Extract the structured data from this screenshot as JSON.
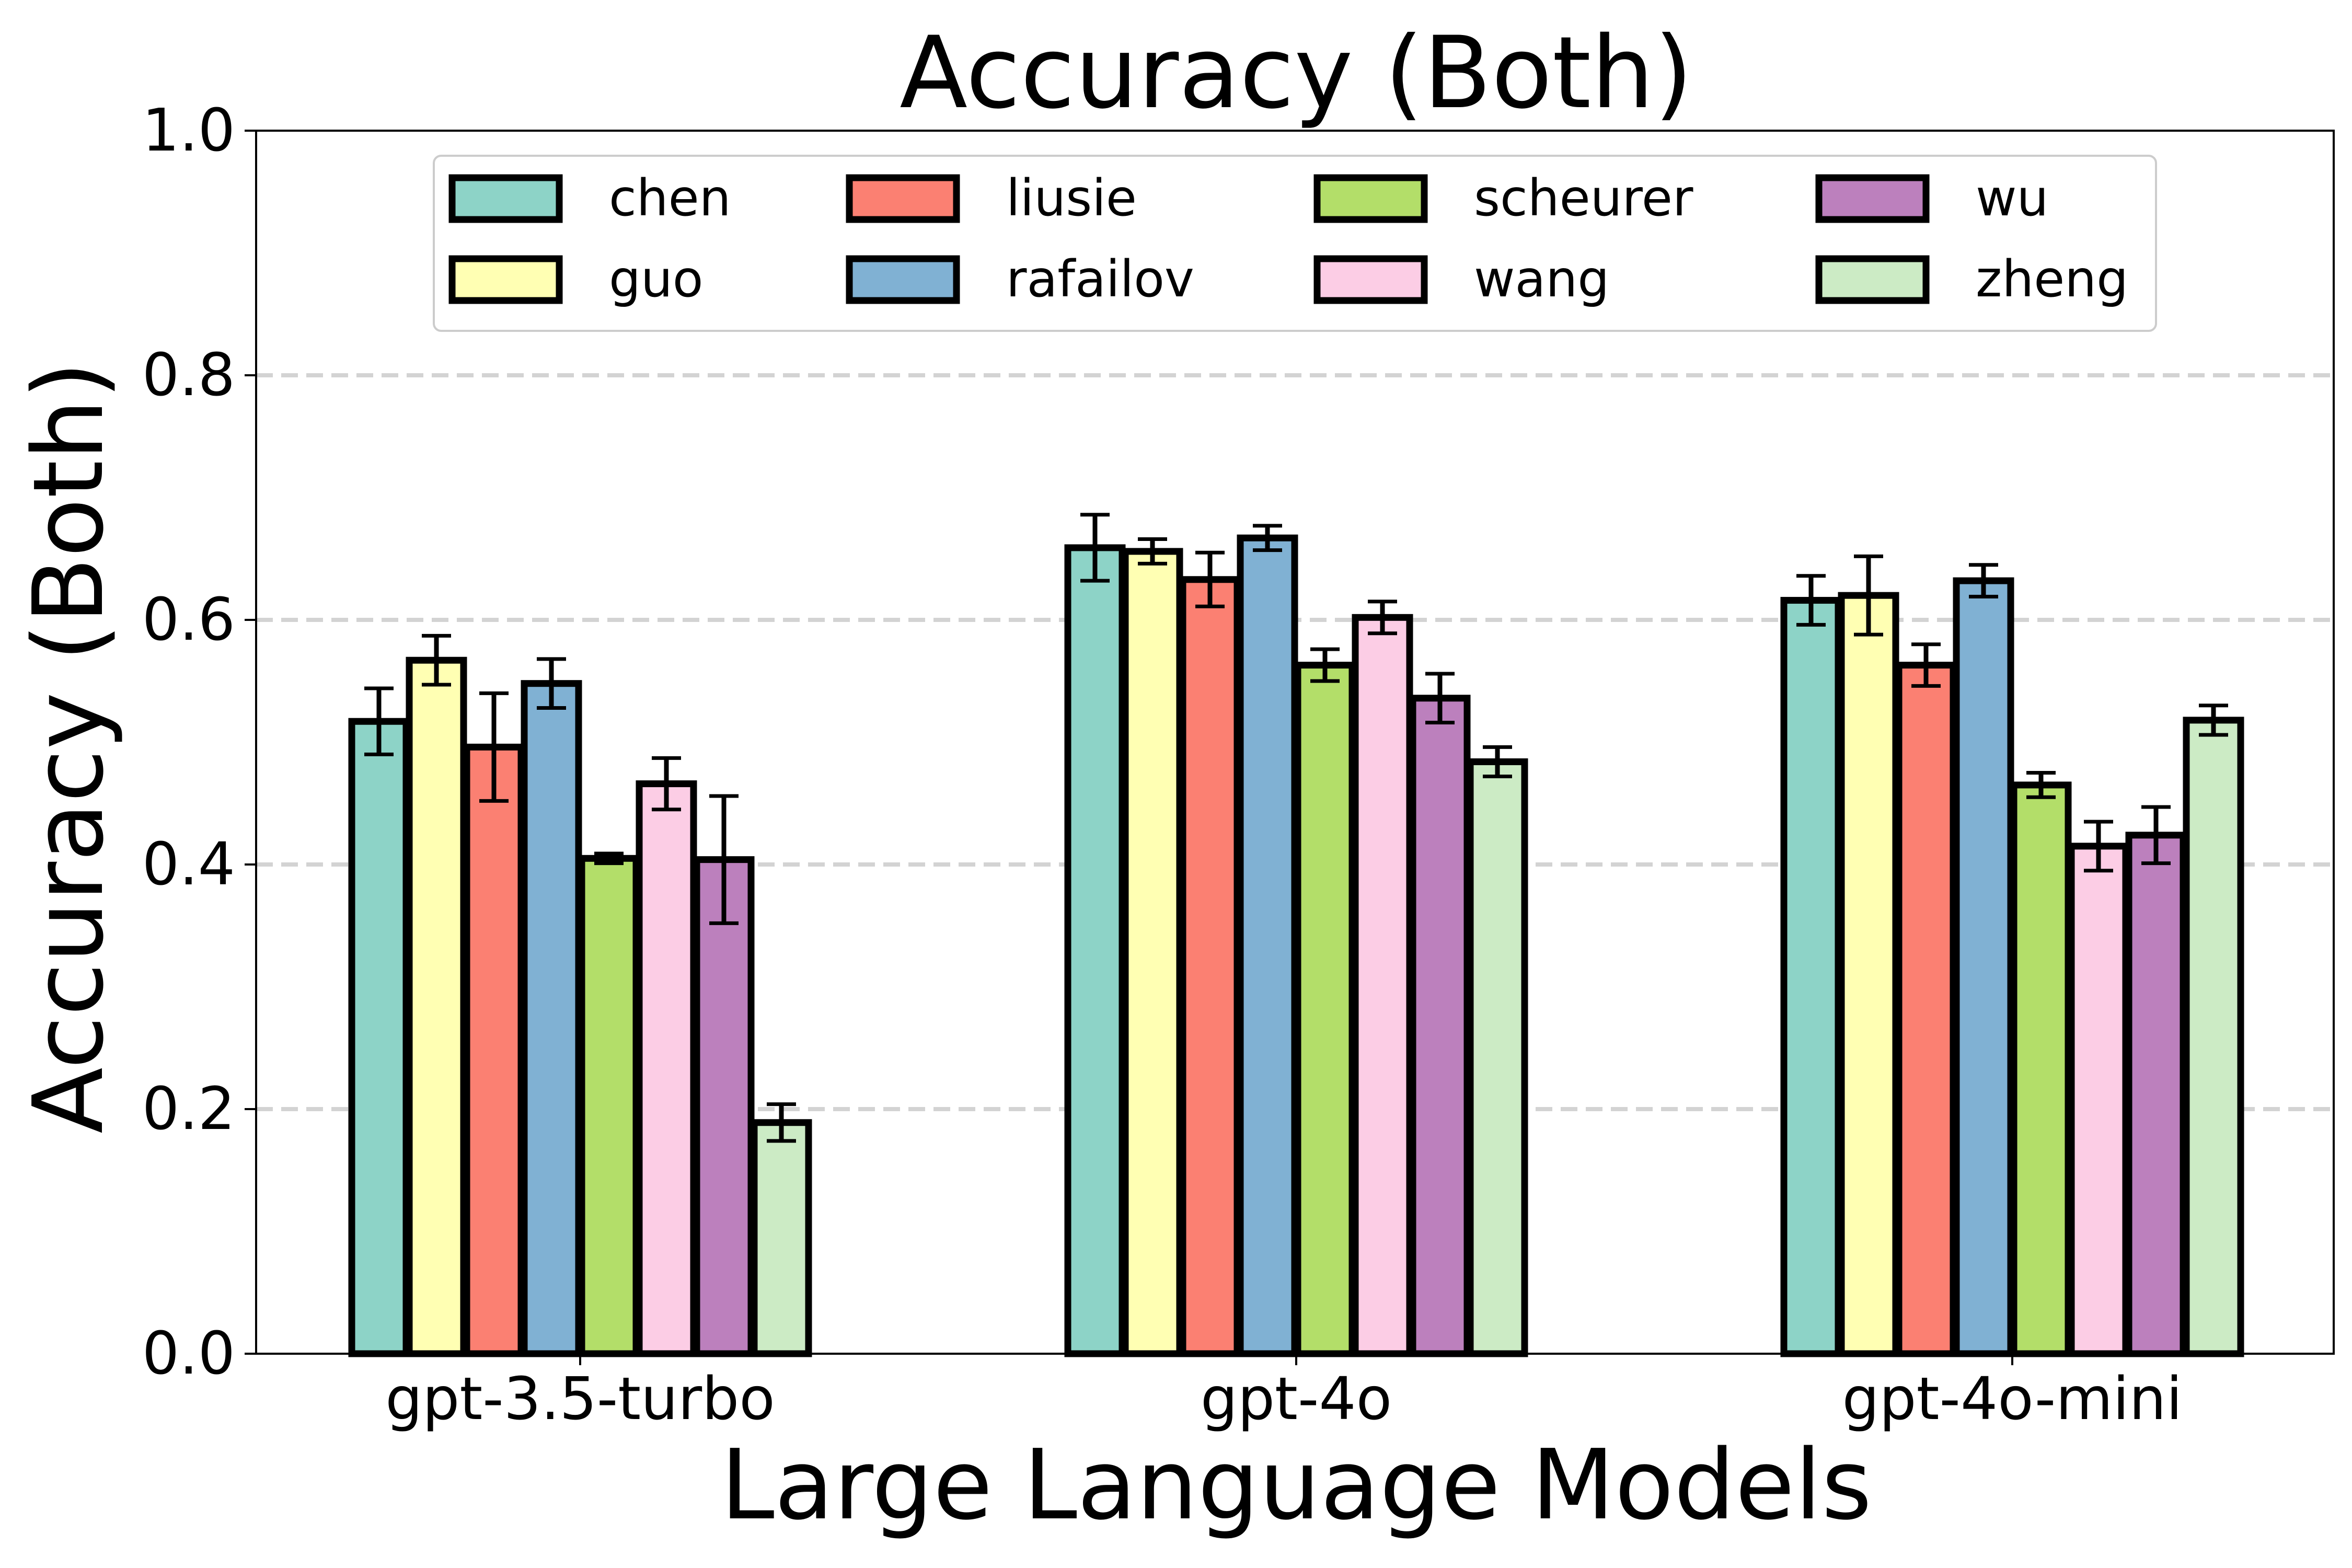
{
  "chart_data": {
    "type": "bar",
    "title": "Accuracy (Both)",
    "xlabel": "Large Language Models",
    "ylabel": "Accuracy (Both)",
    "ylim": [
      0,
      1.0
    ],
    "yticks": [
      "0.0",
      "0.2",
      "0.4",
      "0.6",
      "0.8",
      "1.0"
    ],
    "grid": "horizontal dashed",
    "legend_position": "top",
    "categories": [
      "gpt-3.5-turbo",
      "gpt-4o",
      "gpt-4o-mini"
    ],
    "series": [
      {
        "name": "chen",
        "color": "#8dd3c7",
        "values": [
          0.517,
          0.659,
          0.616
        ],
        "errors": [
          0.027,
          0.027,
          0.02
        ]
      },
      {
        "name": "guo",
        "color": "#ffffb3",
        "values": [
          0.567,
          0.656,
          0.62
        ],
        "errors": [
          0.02,
          0.01,
          0.032
        ]
      },
      {
        "name": "liusie",
        "color": "#fb8072",
        "values": [
          0.496,
          0.633,
          0.563
        ],
        "errors": [
          0.044,
          0.022,
          0.017
        ]
      },
      {
        "name": "rafailov",
        "color": "#80b1d3",
        "values": [
          0.548,
          0.667,
          0.632
        ],
        "errors": [
          0.02,
          0.01,
          0.013
        ]
      },
      {
        "name": "scheurer",
        "color": "#b3de69",
        "values": [
          0.405,
          0.563,
          0.465
        ],
        "errors": [
          0.004,
          0.013,
          0.01
        ]
      },
      {
        "name": "wang",
        "color": "#fccde5",
        "values": [
          0.466,
          0.602,
          0.415
        ],
        "errors": [
          0.021,
          0.013,
          0.02
        ]
      },
      {
        "name": "wu",
        "color": "#bc80bd",
        "values": [
          0.404,
          0.536,
          0.424
        ],
        "errors": [
          0.052,
          0.02,
          0.023
        ]
      },
      {
        "name": "zheng",
        "color": "#ccebc5",
        "values": [
          0.189,
          0.484,
          0.518
        ],
        "errors": [
          0.015,
          0.012,
          0.012
        ]
      }
    ]
  }
}
